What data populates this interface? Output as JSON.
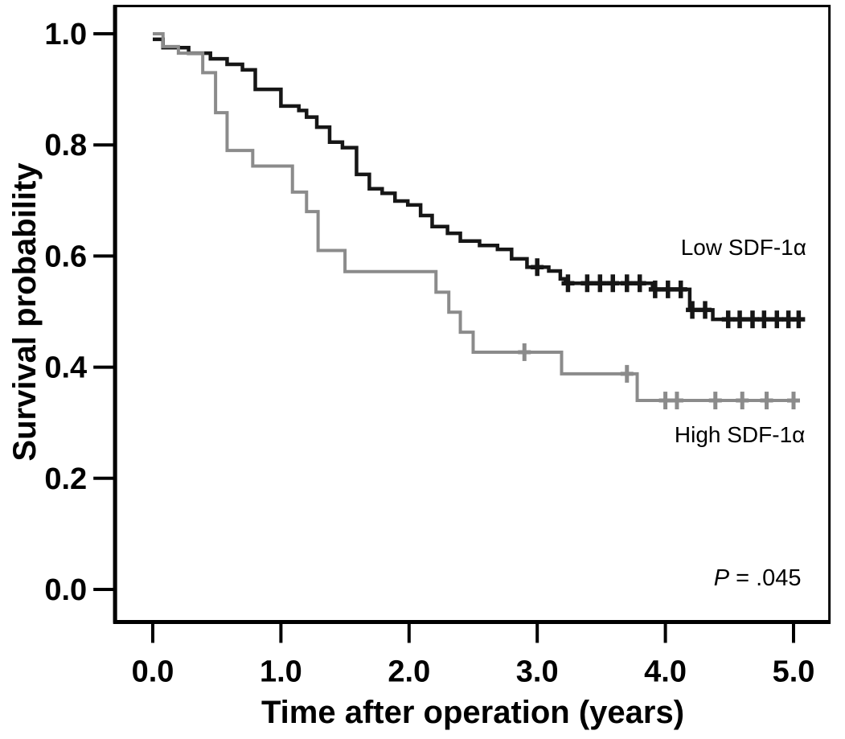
{
  "figure": {
    "background": "#ffffff",
    "frame_color": "#000000"
  },
  "chart_data": {
    "type": "line",
    "subtype": "kaplan_meier_step",
    "title": "",
    "xlabel": "Time after operation (years)",
    "ylabel": "Survival probability",
    "xlim": [
      -0.3,
      5.28
    ],
    "ylim": [
      -0.06,
      1.05
    ],
    "grid": false,
    "legend_position": "on-plot",
    "x_ticks": {
      "values": [
        0,
        1,
        2,
        3,
        4,
        5
      ],
      "labels": [
        "0.0",
        "1.0",
        "2.0",
        "3.0",
        "4.0",
        "5.0"
      ]
    },
    "y_ticks": {
      "values": [
        0,
        0.2,
        0.4,
        0.6,
        0.8,
        1.0
      ],
      "labels": [
        "0.0",
        "0.2",
        "0.4",
        "0.6",
        "0.8",
        "1.0"
      ]
    },
    "series": [
      {
        "name": "Low SDF-1α",
        "slug": "low-sdf1a",
        "color": "#161616",
        "stroke_width": 4.5,
        "label": {
          "text": "Low SDF-1α",
          "x": 5.1,
          "y": 0.602,
          "anchor": "end"
        },
        "steps": [
          [
            0.0,
            0.99
          ],
          [
            0.08,
            0.975
          ],
          [
            0.28,
            0.965
          ],
          [
            0.45,
            0.955
          ],
          [
            0.58,
            0.945
          ],
          [
            0.7,
            0.935
          ],
          [
            0.8,
            0.9
          ],
          [
            1.0,
            0.87
          ],
          [
            1.14,
            0.862
          ],
          [
            1.2,
            0.85
          ],
          [
            1.28,
            0.832
          ],
          [
            1.38,
            0.805
          ],
          [
            1.48,
            0.795
          ],
          [
            1.59,
            0.747
          ],
          [
            1.69,
            0.721
          ],
          [
            1.79,
            0.713
          ],
          [
            1.89,
            0.699
          ],
          [
            1.99,
            0.692
          ],
          [
            2.09,
            0.673
          ],
          [
            2.18,
            0.653
          ],
          [
            2.3,
            0.641
          ],
          [
            2.4,
            0.627
          ],
          [
            2.55,
            0.619
          ],
          [
            2.69,
            0.612
          ],
          [
            2.8,
            0.595
          ],
          [
            2.92,
            0.58
          ],
          [
            3.09,
            0.573
          ],
          [
            3.18,
            0.559
          ],
          [
            3.22,
            0.551
          ],
          [
            3.9,
            0.54
          ],
          [
            4.19,
            0.503
          ],
          [
            4.37,
            0.486
          ],
          [
            5.08,
            0.486
          ]
        ],
        "censors": [
          [
            3.0,
            0.58
          ],
          [
            3.24,
            0.551
          ],
          [
            3.39,
            0.551
          ],
          [
            3.49,
            0.551
          ],
          [
            3.59,
            0.551
          ],
          [
            3.7,
            0.551
          ],
          [
            3.8,
            0.551
          ],
          [
            3.92,
            0.54
          ],
          [
            4.02,
            0.54
          ],
          [
            4.12,
            0.54
          ],
          [
            4.21,
            0.503
          ],
          [
            4.31,
            0.503
          ],
          [
            4.49,
            0.486
          ],
          [
            4.58,
            0.486
          ],
          [
            4.68,
            0.486
          ],
          [
            4.77,
            0.486
          ],
          [
            4.87,
            0.486
          ],
          [
            4.96,
            0.486
          ],
          [
            5.04,
            0.486
          ]
        ]
      },
      {
        "name": "High SDF-1α",
        "slug": "high-sdf1a",
        "color": "#8b8b8b",
        "stroke_width": 4,
        "label": {
          "text": "High SDF-1α",
          "x": 5.09,
          "y": 0.265,
          "anchor": "end"
        },
        "steps": [
          [
            0.0,
            1.0
          ],
          [
            0.08,
            0.977
          ],
          [
            0.2,
            0.965
          ],
          [
            0.39,
            0.93
          ],
          [
            0.49,
            0.858
          ],
          [
            0.58,
            0.79
          ],
          [
            0.78,
            0.762
          ],
          [
            1.09,
            0.715
          ],
          [
            1.2,
            0.68
          ],
          [
            1.29,
            0.61
          ],
          [
            1.5,
            0.572
          ],
          [
            2.21,
            0.535
          ],
          [
            2.31,
            0.499
          ],
          [
            2.4,
            0.463
          ],
          [
            2.5,
            0.427
          ],
          [
            3.19,
            0.388
          ],
          [
            3.78,
            0.34
          ],
          [
            5.02,
            0.34
          ]
        ],
        "censors": [
          [
            2.9,
            0.427
          ],
          [
            3.7,
            0.388
          ],
          [
            4.0,
            0.34
          ],
          [
            4.09,
            0.34
          ],
          [
            4.39,
            0.34
          ],
          [
            4.6,
            0.34
          ],
          [
            4.79,
            0.34
          ],
          [
            5.0,
            0.34
          ]
        ]
      }
    ],
    "annotations": [
      {
        "id": "p-value",
        "prefix": "P",
        "prefix_italic": true,
        "text": " = .045",
        "x": 5.06,
        "y": 0.007,
        "anchor": "end"
      }
    ]
  }
}
